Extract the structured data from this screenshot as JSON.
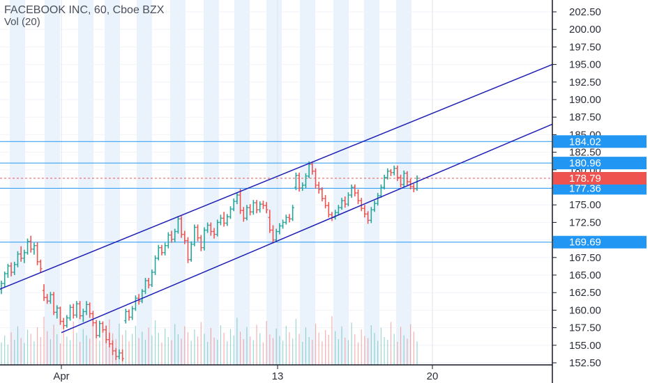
{
  "header": {
    "title": "FACEBOOK INC, 60, Cboe BZX",
    "volume_label": "Vol (20)"
  },
  "chart_data": {
    "type": "ohlc",
    "title": "FACEBOOK INC, 60, Cboe BZX",
    "subtitle": "Vol (20)",
    "x_tick_labels": [
      {
        "label": "Apr",
        "date": "2020-04-01"
      },
      {
        "label": "13",
        "date": "2020-04-13"
      },
      {
        "label": "20",
        "date": "2020-04-20"
      }
    ],
    "ylim": [
      152.5,
      202.5
    ],
    "y_tick_labels": [
      "152.50",
      "155.00",
      "157.50",
      "160.00",
      "162.50",
      "165.00",
      "167.50",
      "170.00",
      "172.50",
      "175.00",
      "177.50",
      "180.00",
      "182.50",
      "185.00",
      "187.50",
      "190.00",
      "192.50",
      "195.00",
      "197.50",
      "200.00",
      "202.50"
    ],
    "y_ticks": [
      152.5,
      155,
      157.5,
      160,
      162.5,
      165,
      167.5,
      170,
      172.5,
      175,
      177.5,
      180,
      182.5,
      185,
      187.5,
      190,
      192.5,
      195,
      197.5,
      200,
      202.5
    ],
    "horizontal_lines": [
      {
        "label": "184.02",
        "value": 184.02,
        "color": "#2196f3"
      },
      {
        "label": "180.96",
        "value": 180.96,
        "color": "#2196f3"
      },
      {
        "label": "177.36",
        "value": 177.36,
        "color": "#2196f3"
      },
      {
        "label": "169.69",
        "value": 169.69,
        "color": "#2196f3"
      }
    ],
    "last_price": {
      "label": "178.79",
      "value": 178.79,
      "color": "#ef5350"
    },
    "channel_lines": [
      {
        "name": "upper",
        "start": {
          "date": "2020-03-30",
          "price": 163.0
        },
        "end": {
          "date": "2020-04-24",
          "price": 195.0
        },
        "color": "#1f1fb5"
      },
      {
        "name": "lower",
        "start": {
          "date": "2020-04-01",
          "price": 156.8
        },
        "end": {
          "date": "2020-04-24",
          "price": 186.5
        },
        "color": "#1f1fb5"
      }
    ],
    "up_color": "#26a69a",
    "down_color": "#ef5350",
    "channel_color": "#1f1fb5",
    "level_color": "#2196f3",
    "session_shading": true,
    "bars": [
      [
        163.0,
        164.2,
        162.3,
        163.8
      ],
      [
        163.8,
        165.5,
        163.2,
        165.2
      ],
      [
        165.2,
        166.6,
        164.6,
        166.3
      ],
      [
        166.3,
        166.8,
        164.8,
        165.4
      ],
      [
        165.4,
        166.9,
        165.0,
        166.5
      ],
      [
        166.5,
        168.4,
        166.1,
        168.0
      ],
      [
        168.0,
        169.1,
        166.9,
        167.4
      ],
      [
        167.4,
        168.6,
        166.7,
        168.2
      ],
      [
        168.2,
        170.2,
        167.9,
        169.8
      ],
      [
        169.8,
        170.6,
        168.2,
        168.7
      ],
      [
        168.7,
        169.6,
        167.9,
        169.2
      ],
      [
        169.2,
        169.7,
        166.4,
        166.9
      ],
      [
        166.9,
        167.2,
        165.3,
        165.9
      ],
      [
        162.8,
        163.7,
        161.3,
        161.8
      ],
      [
        161.8,
        162.3,
        160.9,
        161.3
      ],
      [
        161.3,
        162.6,
        160.9,
        162.2
      ],
      [
        162.2,
        162.6,
        159.3,
        159.7
      ],
      [
        159.7,
        160.7,
        158.8,
        160.3
      ],
      [
        160.3,
        160.5,
        157.9,
        158.4
      ],
      [
        158.4,
        158.9,
        157.3,
        157.8
      ],
      [
        157.8,
        159.3,
        157.5,
        158.9
      ],
      [
        158.9,
        160.8,
        158.5,
        160.4
      ],
      [
        160.4,
        160.9,
        158.8,
        159.3
      ],
      [
        159.3,
        161.3,
        158.9,
        160.9
      ],
      [
        160.9,
        161.3,
        158.7,
        159.2
      ],
      [
        159.2,
        160.2,
        158.3,
        159.8
      ],
      [
        159.8,
        161.3,
        159.3,
        160.8
      ],
      [
        160.8,
        161.1,
        158.9,
        159.5
      ],
      [
        159.5,
        159.9,
        157.7,
        158.2
      ],
      [
        158.2,
        158.6,
        156.0,
        156.4
      ],
      [
        156.4,
        158.5,
        156.1,
        158.1
      ],
      [
        158.1,
        158.4,
        156.8,
        157.2
      ],
      [
        157.2,
        157.8,
        155.3,
        155.8
      ],
      [
        155.8,
        156.8,
        154.7,
        155.2
      ],
      [
        155.2,
        155.7,
        153.6,
        154.2
      ],
      [
        154.2,
        154.6,
        152.9,
        153.4
      ],
      [
        153.4,
        154.4,
        153.0,
        153.9
      ],
      [
        153.9,
        154.4,
        152.7,
        153.1
      ],
      [
        158.5,
        160.2,
        158.1,
        159.8
      ],
      [
        159.8,
        160.1,
        158.5,
        159.0
      ],
      [
        159.0,
        160.6,
        158.6,
        160.2
      ],
      [
        160.2,
        162.1,
        159.9,
        161.7
      ],
      [
        161.7,
        162.3,
        160.8,
        161.3
      ],
      [
        161.3,
        163.0,
        161.0,
        162.7
      ],
      [
        162.7,
        164.6,
        162.3,
        164.2
      ],
      [
        164.2,
        164.6,
        163.1,
        163.6
      ],
      [
        163.6,
        165.8,
        163.3,
        165.4
      ],
      [
        165.4,
        167.8,
        165.0,
        167.4
      ],
      [
        167.4,
        169.3,
        167.1,
        168.9
      ],
      [
        168.9,
        169.3,
        167.8,
        168.2
      ],
      [
        168.2,
        169.6,
        167.8,
        169.2
      ],
      [
        169.2,
        171.1,
        168.8,
        170.7
      ],
      [
        170.7,
        171.3,
        169.6,
        170.1
      ],
      [
        170.1,
        171.6,
        169.7,
        171.2
      ],
      [
        171.2,
        173.4,
        170.9,
        173.0
      ],
      [
        173.0,
        173.4,
        170.3,
        170.8
      ],
      [
        170.8,
        171.3,
        169.4,
        169.9
      ],
      [
        169.9,
        170.4,
        166.7,
        167.2
      ],
      [
        167.2,
        169.8,
        166.9,
        169.4
      ],
      [
        169.4,
        172.2,
        169.1,
        171.8
      ],
      [
        171.8,
        172.2,
        169.8,
        170.3
      ],
      [
        170.3,
        170.7,
        168.4,
        168.9
      ],
      [
        168.9,
        171.8,
        168.5,
        171.4
      ],
      [
        171.4,
        172.5,
        171.0,
        172.1
      ],
      [
        172.1,
        172.5,
        170.6,
        171.2
      ],
      [
        171.2,
        171.7,
        170.2,
        170.8
      ],
      [
        170.8,
        172.9,
        170.5,
        172.5
      ],
      [
        172.5,
        173.6,
        172.1,
        173.1
      ],
      [
        173.1,
        174.0,
        171.9,
        172.4
      ],
      [
        172.4,
        173.7,
        172.0,
        173.3
      ],
      [
        173.3,
        174.8,
        173.0,
        174.4
      ],
      [
        174.4,
        175.9,
        174.1,
        175.5
      ],
      [
        175.5,
        176.8,
        175.1,
        176.4
      ],
      [
        176.4,
        177.3,
        173.7,
        174.2
      ],
      [
        174.2,
        174.7,
        172.6,
        173.1
      ],
      [
        173.1,
        175.0,
        172.8,
        174.6
      ],
      [
        174.6,
        175.1,
        173.5,
        174.0
      ],
      [
        174.0,
        175.7,
        173.6,
        175.3
      ],
      [
        175.3,
        175.7,
        173.8,
        174.3
      ],
      [
        174.3,
        175.5,
        173.9,
        175.1
      ],
      [
        175.1,
        175.6,
        174.4,
        174.9
      ],
      [
        174.9,
        175.4,
        173.8,
        174.3
      ],
      [
        173.2,
        174.3,
        171.0,
        171.4
      ],
      [
        171.4,
        172.1,
        169.5,
        170.0
      ],
      [
        170.0,
        171.6,
        169.7,
        171.2
      ],
      [
        171.2,
        172.4,
        170.8,
        172.0
      ],
      [
        172.0,
        172.9,
        171.6,
        172.5
      ],
      [
        172.5,
        173.6,
        172.2,
        173.2
      ],
      [
        173.2,
        173.7,
        172.5,
        173.0
      ],
      [
        173.0,
        175.0,
        172.7,
        174.6
      ],
      [
        177.5,
        179.6,
        177.1,
        179.2
      ],
      [
        179.2,
        179.6,
        176.9,
        177.4
      ],
      [
        177.4,
        178.2,
        177.0,
        177.8
      ],
      [
        177.8,
        179.5,
        177.4,
        179.1
      ],
      [
        179.1,
        181.2,
        178.8,
        180.8
      ],
      [
        180.8,
        181.1,
        179.3,
        179.8
      ],
      [
        179.8,
        180.2,
        177.3,
        177.8
      ],
      [
        177.8,
        178.3,
        176.6,
        177.2
      ],
      [
        177.2,
        177.5,
        175.5,
        175.9
      ],
      [
        175.9,
        176.4,
        174.5,
        174.9
      ],
      [
        174.9,
        175.4,
        173.2,
        173.6
      ],
      [
        173.6,
        174.0,
        172.7,
        173.2
      ],
      [
        173.2,
        174.3,
        172.9,
        173.9
      ],
      [
        173.9,
        175.0,
        173.6,
        174.6
      ],
      [
        174.6,
        176.0,
        174.3,
        175.6
      ],
      [
        175.6,
        176.2,
        174.6,
        175.1
      ],
      [
        175.1,
        176.8,
        174.8,
        176.4
      ],
      [
        176.4,
        177.9,
        176.0,
        177.5
      ],
      [
        177.5,
        177.9,
        176.2,
        176.7
      ],
      [
        176.7,
        177.2,
        175.1,
        175.6
      ],
      [
        175.6,
        176.0,
        174.1,
        174.5
      ],
      [
        174.5,
        175.0,
        173.2,
        173.7
      ],
      [
        173.7,
        174.1,
        172.3,
        172.8
      ],
      [
        172.8,
        174.7,
        172.4,
        174.3
      ],
      [
        174.3,
        175.6,
        174.0,
        175.2
      ],
      [
        175.2,
        176.7,
        174.9,
        176.3
      ],
      [
        176.3,
        177.9,
        176.0,
        177.5
      ],
      [
        177.5,
        179.3,
        177.2,
        178.9
      ],
      [
        178.9,
        180.2,
        178.6,
        179.8
      ],
      [
        179.8,
        180.1,
        179.1,
        179.6
      ],
      [
        179.6,
        180.6,
        179.2,
        180.2
      ],
      [
        180.2,
        180.6,
        178.4,
        178.9
      ],
      [
        178.9,
        179.3,
        177.5,
        177.9
      ],
      [
        177.9,
        179.9,
        177.5,
        179.5
      ],
      [
        179.5,
        179.8,
        177.8,
        178.3
      ],
      [
        178.3,
        178.7,
        177.2,
        177.6
      ],
      [
        177.6,
        178.0,
        176.8,
        177.3
      ],
      [
        177.3,
        179.2,
        177.0,
        178.8
      ]
    ],
    "volumes": [
      0.42,
      0.55,
      0.38,
      0.61,
      0.47,
      0.72,
      0.5,
      0.41,
      0.66,
      0.58,
      0.44,
      0.7,
      0.52,
      0.9,
      0.63,
      0.48,
      0.75,
      0.57,
      0.4,
      0.69,
      0.53,
      0.46,
      0.81,
      0.6,
      0.43,
      0.67,
      0.55,
      0.49,
      0.74,
      0.62,
      0.45,
      0.71,
      0.54,
      0.85,
      0.59,
      0.48,
      0.77,
      0.56,
      0.65,
      0.44,
      0.58,
      0.73,
      0.5,
      0.62,
      0.47,
      0.7,
      0.55,
      0.83,
      0.6,
      0.42,
      0.68,
      0.52,
      0.46,
      0.76,
      0.57,
      0.49,
      0.72,
      0.61,
      0.45,
      0.66,
      0.53,
      0.8,
      0.58,
      0.43,
      0.69,
      0.51,
      0.47,
      0.74,
      0.6,
      0.44,
      0.67,
      0.55,
      0.88,
      0.62,
      0.48,
      0.71,
      0.53,
      0.46,
      0.75,
      0.59,
      0.42,
      0.82,
      0.57,
      0.5,
      0.68,
      0.54,
      0.45,
      0.73,
      0.61,
      0.49,
      0.86,
      0.58,
      0.43,
      0.7,
      0.52,
      0.47,
      0.77,
      0.6,
      0.44,
      0.65,
      0.56,
      0.91,
      0.63,
      0.48,
      0.72,
      0.51,
      0.46,
      0.79,
      0.57,
      0.42,
      0.66,
      0.54,
      0.5,
      0.74,
      0.6,
      0.45,
      0.69,
      0.52,
      0.47,
      0.8,
      0.58,
      0.43,
      0.71,
      0.55,
      0.49,
      0.76,
      0.62,
      0.44
    ]
  }
}
